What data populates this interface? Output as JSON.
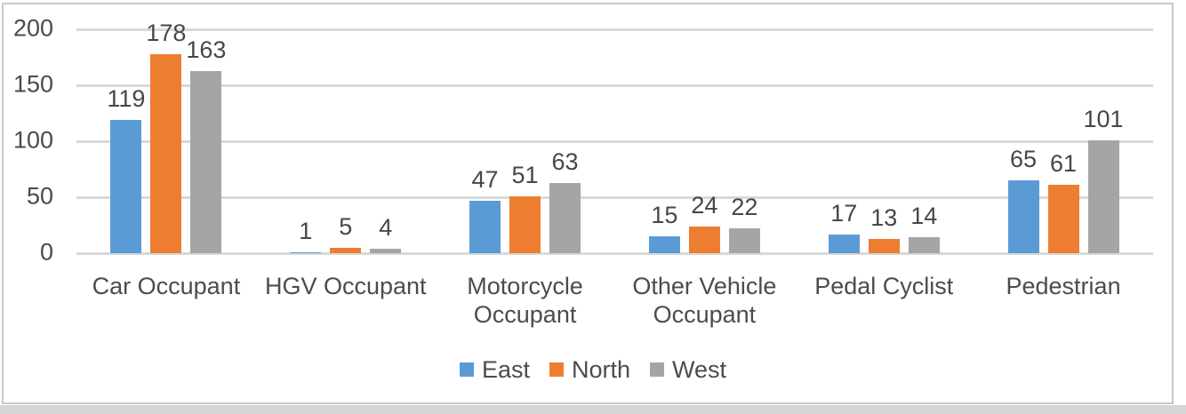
{
  "chart_data": {
    "type": "bar",
    "title": "",
    "xlabel": "",
    "ylabel": "",
    "categories": [
      "Car Occupant",
      "HGV Occupant",
      "Motorcycle Occupant",
      "Other Vehicle Occupant",
      "Pedal Cyclist",
      "Pedestrian"
    ],
    "series": [
      {
        "name": "East",
        "color": "#5b9bd5",
        "values": [
          119,
          1,
          47,
          15,
          17,
          65
        ]
      },
      {
        "name": "North",
        "color": "#ed7d31",
        "values": [
          178,
          5,
          51,
          24,
          13,
          61
        ]
      },
      {
        "name": "West",
        "color": "#a5a5a5",
        "values": [
          163,
          4,
          63,
          22,
          14,
          101
        ]
      }
    ],
    "ylim": [
      0,
      200
    ],
    "yticks": [
      0,
      50,
      100,
      150,
      200
    ],
    "grid": true,
    "value_labels": true,
    "legend_position": "bottom",
    "legend_entries": [
      "East",
      "North",
      "West"
    ]
  },
  "colors": {
    "gridline": "#d9d9d9",
    "axis_text": "#4a4a4a",
    "frame_border": "#c8c8c8",
    "bottom_band": "#d6d6d6",
    "background": "#ffffff"
  }
}
